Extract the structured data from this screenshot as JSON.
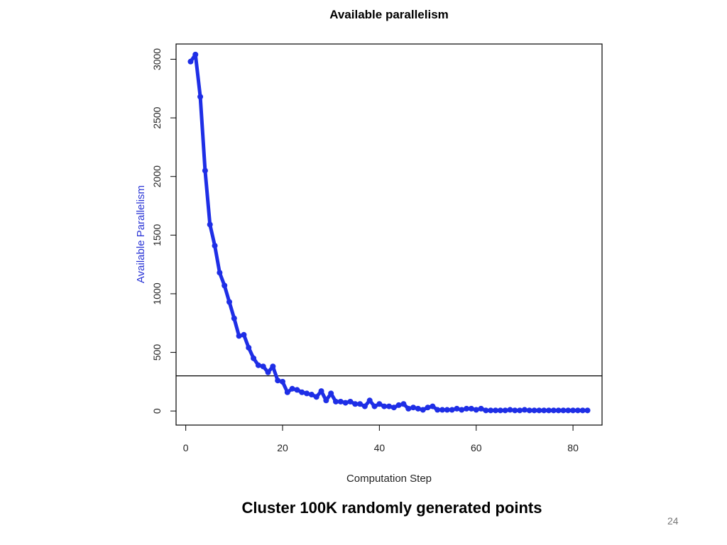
{
  "slide": {
    "caption": "Cluster 100K randomly generated points",
    "page_number": "24"
  },
  "colors": {
    "series": "#1e2ee6",
    "ylabel": "#2a35d6",
    "axis": "#000000",
    "threshold_line": "#000000"
  },
  "chart_data": {
    "type": "line",
    "title": "Available parallelism",
    "xlabel": "Computation Step",
    "ylabel": "Available Parallelism",
    "xlim": [
      -2,
      86
    ],
    "ylim": [
      -120,
      3130
    ],
    "xticks": [
      0,
      20,
      40,
      60,
      80
    ],
    "yticks": [
      0,
      500,
      1000,
      1500,
      2000,
      2500,
      3000
    ],
    "hline": 300,
    "grid": false,
    "series": [
      {
        "x": [
          1,
          2,
          3,
          4,
          5,
          6,
          7,
          8,
          9,
          10,
          11,
          12,
          13,
          14,
          15,
          16,
          17,
          18,
          19,
          20,
          21,
          22,
          23,
          24,
          25,
          26,
          27,
          28,
          29,
          30,
          31,
          32,
          33,
          34,
          35,
          36,
          37,
          38,
          39,
          40,
          41,
          42,
          43,
          44,
          45,
          46,
          47,
          48,
          49,
          50,
          51,
          52,
          53,
          54,
          55,
          56,
          57,
          58,
          59,
          60,
          61,
          62,
          63,
          64,
          65,
          66,
          67,
          68,
          69,
          70,
          71,
          72,
          73,
          74,
          75,
          76,
          77,
          78,
          79,
          80,
          81,
          82,
          83
        ],
        "values": [
          2980,
          3040,
          2680,
          2050,
          1590,
          1410,
          1180,
          1070,
          930,
          790,
          640,
          650,
          540,
          450,
          390,
          380,
          330,
          380,
          260,
          250,
          160,
          190,
          180,
          160,
          150,
          140,
          120,
          170,
          90,
          150,
          80,
          80,
          70,
          80,
          60,
          60,
          40,
          90,
          40,
          60,
          40,
          40,
          30,
          50,
          60,
          20,
          30,
          20,
          10,
          30,
          40,
          10,
          10,
          10,
          10,
          20,
          10,
          20,
          20,
          10,
          20,
          5,
          5,
          5,
          5,
          5,
          10,
          5,
          5,
          10,
          5,
          5,
          5,
          5,
          5,
          5,
          5,
          5,
          5,
          5,
          5,
          5,
          5
        ]
      }
    ]
  }
}
